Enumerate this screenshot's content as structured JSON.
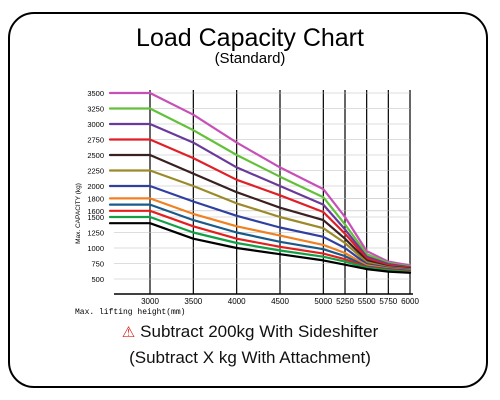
{
  "header": {
    "title": "Load Capacity Chart",
    "subtitle": "(Standard)"
  },
  "notes": {
    "warning_icon": "warning-triangle-icon",
    "line1": "Subtract 200kg With Sideshifter",
    "line2": "(Subtract X kg With Attachment)"
  },
  "chart_data": {
    "type": "line",
    "title": "Load Capacity Chart",
    "subtitle": "(Standard)",
    "xlabel": "Max. lifting height(mm)",
    "ylabel": "Max. CAPACITY (kg)",
    "xlim": [
      3000,
      6000
    ],
    "ylim": [
      500,
      3500
    ],
    "x_ticks": [
      3000,
      3500,
      4000,
      4500,
      5000,
      5250,
      5500,
      5750,
      6000
    ],
    "y_ticks": [
      3500,
      3250,
      3000,
      2750,
      2500,
      2250,
      2000,
      1800,
      1600,
      1500,
      1250,
      1000,
      750,
      500
    ],
    "y_tick_labels": [
      "3500",
      "3250",
      "3000",
      "2750",
      "2500",
      "2250",
      "2000",
      "1800",
      "1600",
      "1500",
      "1250",
      "1000",
      "750",
      "500"
    ],
    "grid": true,
    "series": [
      {
        "color": "#c750b8",
        "values": [
          [
            2700,
            3500
          ],
          [
            3000,
            3500
          ],
          [
            3500,
            3150
          ],
          [
            4000,
            2700
          ],
          [
            4500,
            2300
          ],
          [
            5000,
            1950
          ],
          [
            5250,
            1500
          ],
          [
            5500,
            950
          ],
          [
            5750,
            780
          ],
          [
            6000,
            720
          ]
        ]
      },
      {
        "color": "#63c03a",
        "values": [
          [
            2700,
            3250
          ],
          [
            3000,
            3250
          ],
          [
            3500,
            2900
          ],
          [
            4000,
            2500
          ],
          [
            4500,
            2150
          ],
          [
            5000,
            1820
          ],
          [
            5250,
            1380
          ],
          [
            5500,
            900
          ],
          [
            5750,
            760
          ],
          [
            6000,
            700
          ]
        ]
      },
      {
        "color": "#6a3a9a",
        "values": [
          [
            2700,
            3000
          ],
          [
            3000,
            3000
          ],
          [
            3500,
            2700
          ],
          [
            4000,
            2300
          ],
          [
            4500,
            2000
          ],
          [
            5000,
            1700
          ],
          [
            5250,
            1300
          ],
          [
            5500,
            860
          ],
          [
            5750,
            740
          ],
          [
            6000,
            690
          ]
        ]
      },
      {
        "color": "#e01f26",
        "values": [
          [
            2700,
            2750
          ],
          [
            3000,
            2750
          ],
          [
            3500,
            2450
          ],
          [
            4000,
            2100
          ],
          [
            4500,
            1850
          ],
          [
            5000,
            1580
          ],
          [
            5250,
            1230
          ],
          [
            5500,
            830
          ],
          [
            5750,
            720
          ],
          [
            6000,
            680
          ]
        ]
      },
      {
        "color": "#3a2020",
        "values": [
          [
            2700,
            2500
          ],
          [
            3000,
            2500
          ],
          [
            3500,
            2200
          ],
          [
            4000,
            1900
          ],
          [
            4500,
            1650
          ],
          [
            5000,
            1450
          ],
          [
            5250,
            1150
          ],
          [
            5500,
            800
          ],
          [
            5750,
            700
          ],
          [
            6000,
            670
          ]
        ]
      },
      {
        "color": "#9a8a2a",
        "values": [
          [
            2700,
            2250
          ],
          [
            3000,
            2250
          ],
          [
            3500,
            2000
          ],
          [
            4000,
            1720
          ],
          [
            4500,
            1500
          ],
          [
            5000,
            1320
          ],
          [
            5250,
            1080
          ],
          [
            5500,
            770
          ],
          [
            5750,
            690
          ],
          [
            6000,
            660
          ]
        ]
      },
      {
        "color": "#3040a0",
        "values": [
          [
            2700,
            2000
          ],
          [
            3000,
            2000
          ],
          [
            3500,
            1750
          ],
          [
            4000,
            1520
          ],
          [
            4500,
            1330
          ],
          [
            5000,
            1180
          ],
          [
            5250,
            1000
          ],
          [
            5500,
            740
          ],
          [
            5750,
            680
          ],
          [
            6000,
            650
          ]
        ]
      },
      {
        "color": "#f08020",
        "values": [
          [
            2700,
            1800
          ],
          [
            3000,
            1800
          ],
          [
            3500,
            1550
          ],
          [
            4000,
            1350
          ],
          [
            4500,
            1200
          ],
          [
            5000,
            1050
          ],
          [
            5250,
            920
          ],
          [
            5500,
            720
          ],
          [
            5750,
            670
          ],
          [
            6000,
            640
          ]
        ]
      },
      {
        "color": "#1a5a8a",
        "values": [
          [
            2700,
            1700
          ],
          [
            3000,
            1700
          ],
          [
            3500,
            1450
          ],
          [
            4000,
            1250
          ],
          [
            4500,
            1100
          ],
          [
            5000,
            980
          ],
          [
            5250,
            870
          ],
          [
            5500,
            700
          ],
          [
            5750,
            660
          ],
          [
            6000,
            630
          ]
        ]
      },
      {
        "color": "#e22020",
        "values": [
          [
            2700,
            1600
          ],
          [
            3000,
            1600
          ],
          [
            3500,
            1350
          ],
          [
            4000,
            1150
          ],
          [
            4500,
            1020
          ],
          [
            5000,
            910
          ],
          [
            5250,
            820
          ],
          [
            5500,
            690
          ],
          [
            5750,
            650
          ],
          [
            6000,
            620
          ]
        ]
      },
      {
        "color": "#11a046",
        "values": [
          [
            2700,
            1500
          ],
          [
            3000,
            1500
          ],
          [
            3500,
            1250
          ],
          [
            4000,
            1080
          ],
          [
            4500,
            960
          ],
          [
            5000,
            860
          ],
          [
            5250,
            780
          ],
          [
            5500,
            680
          ],
          [
            5750,
            640
          ],
          [
            6000,
            610
          ]
        ]
      },
      {
        "color": "#000000",
        "values": [
          [
            2700,
            1400
          ],
          [
            3000,
            1400
          ],
          [
            3500,
            1150
          ],
          [
            4000,
            1000
          ],
          [
            4500,
            900
          ],
          [
            5000,
            800
          ],
          [
            5250,
            730
          ],
          [
            5500,
            660
          ],
          [
            5750,
            620
          ],
          [
            6000,
            600
          ]
        ]
      }
    ]
  }
}
